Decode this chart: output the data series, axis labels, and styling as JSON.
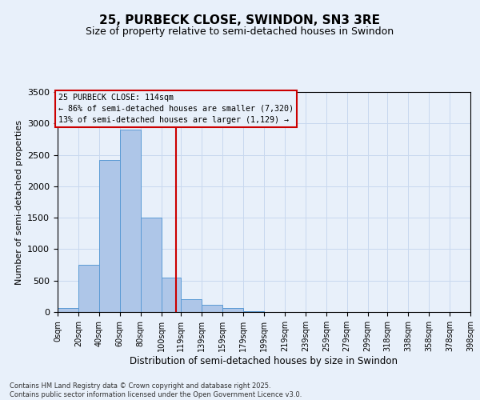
{
  "title": "25, PURBECK CLOSE, SWINDON, SN3 3RE",
  "subtitle": "Size of property relative to semi-detached houses in Swindon",
  "xlabel": "Distribution of semi-detached houses by size in Swindon",
  "ylabel": "Number of semi-detached properties",
  "property_size": 114,
  "annotation_title": "25 PURBECK CLOSE: 114sqm",
  "annotation_line1": "← 86% of semi-detached houses are smaller (7,320)",
  "annotation_line2": "13% of semi-detached houses are larger (1,129) →",
  "bin_edges": [
    0,
    20,
    40,
    60,
    80,
    100,
    119,
    139,
    159,
    179,
    199,
    219,
    239,
    259,
    279,
    299,
    318,
    338,
    358,
    378,
    398
  ],
  "bar_heights": [
    70,
    750,
    2420,
    2900,
    1500,
    550,
    200,
    110,
    60,
    15,
    0,
    0,
    0,
    0,
    0,
    0,
    0,
    0,
    0,
    0
  ],
  "bar_color": "#aec6e8",
  "bar_edge_color": "#5b9bd5",
  "grid_color": "#c8d8ee",
  "bg_color": "#e8f0fa",
  "red_line_color": "#cc0000",
  "annotation_box_color": "#cc0000",
  "ylim": [
    0,
    3500
  ],
  "yticks": [
    0,
    500,
    1000,
    1500,
    2000,
    2500,
    3000,
    3500
  ],
  "tick_labels": [
    "0sqm",
    "20sqm",
    "40sqm",
    "60sqm",
    "80sqm",
    "100sqm",
    "119sqm",
    "139sqm",
    "159sqm",
    "179sqm",
    "199sqm",
    "219sqm",
    "239sqm",
    "259sqm",
    "279sqm",
    "299sqm",
    "318sqm",
    "338sqm",
    "358sqm",
    "378sqm",
    "398sqm"
  ],
  "footnote1": "Contains HM Land Registry data © Crown copyright and database right 2025.",
  "footnote2": "Contains public sector information licensed under the Open Government Licence v3.0."
}
